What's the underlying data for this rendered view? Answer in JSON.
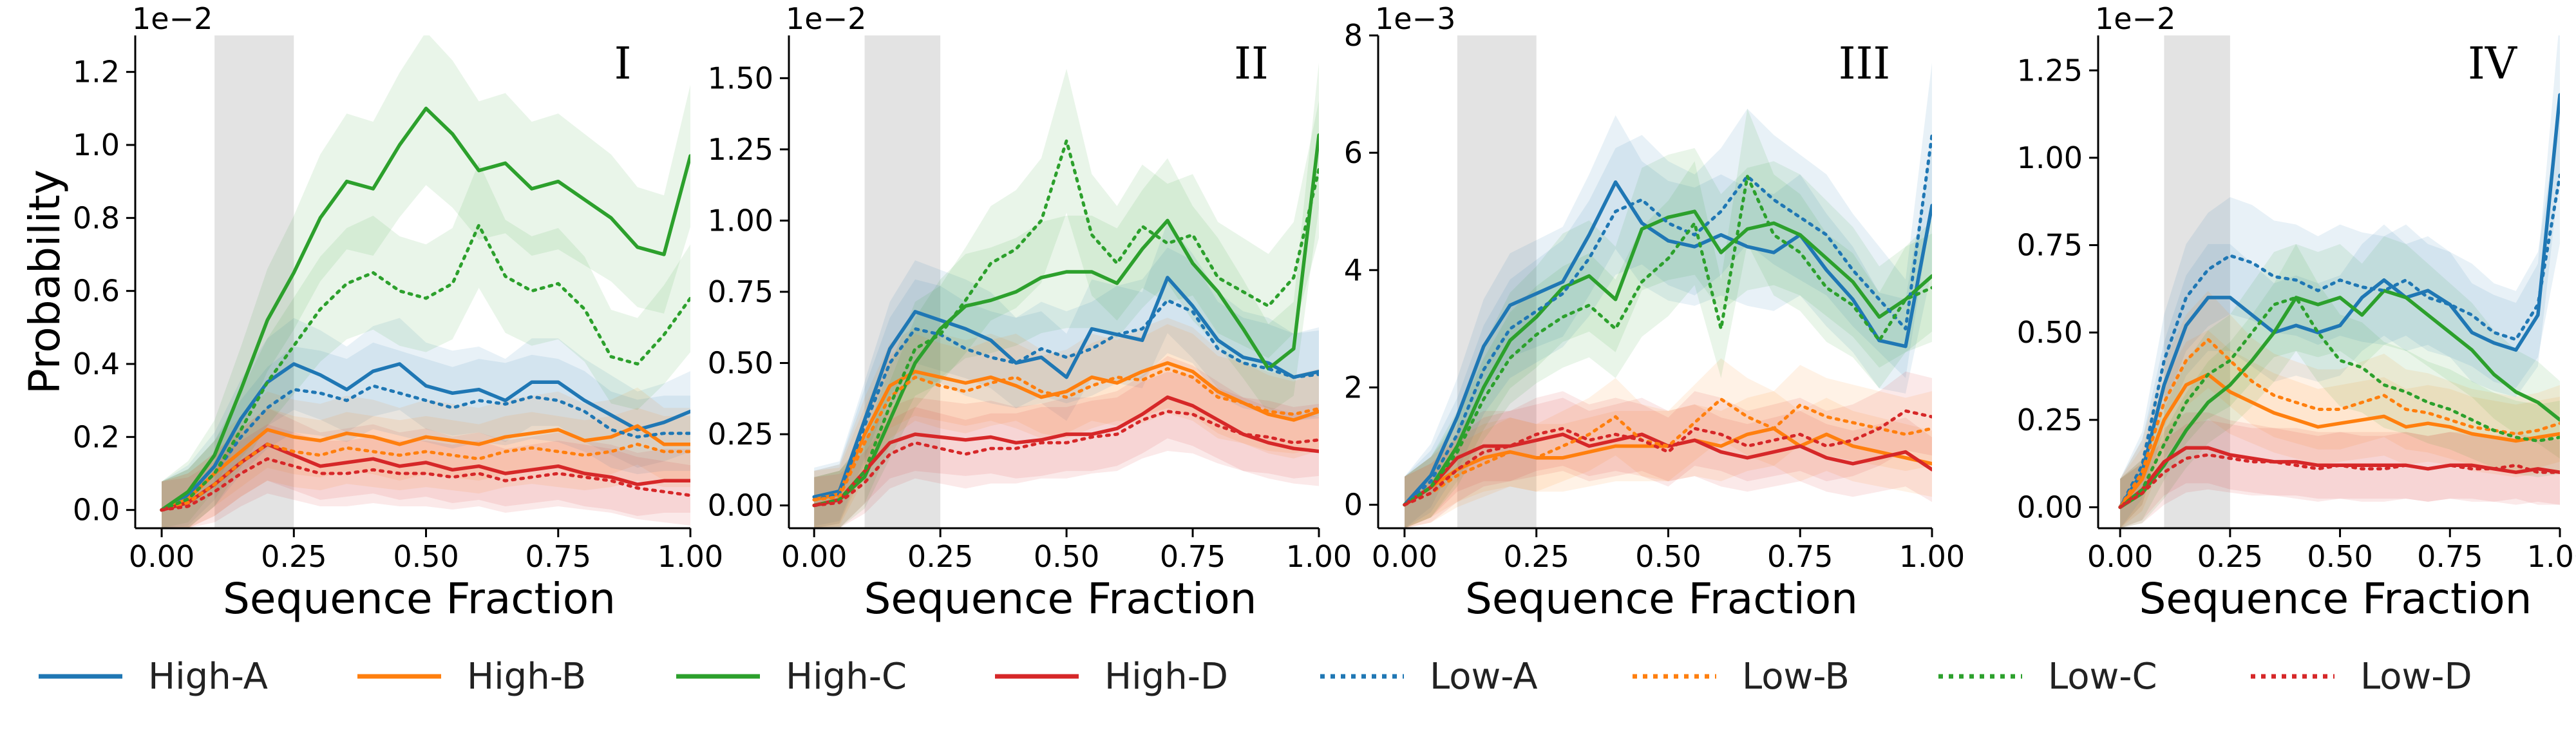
{
  "series_styles": [
    {
      "name": "High-A",
      "color": "#1f77b4",
      "dash": "solid"
    },
    {
      "name": "High-B",
      "color": "#ff7f0e",
      "dash": "solid"
    },
    {
      "name": "High-C",
      "color": "#2ca02c",
      "dash": "solid"
    },
    {
      "name": "High-D",
      "color": "#d62728",
      "dash": "solid"
    },
    {
      "name": "Low-A",
      "color": "#1f77b4",
      "dash": "dotted"
    },
    {
      "name": "Low-B",
      "color": "#ff7f0e",
      "dash": "dotted"
    },
    {
      "name": "Low-C",
      "color": "#2ca02c",
      "dash": "dotted"
    },
    {
      "name": "Low-D",
      "color": "#d62728",
      "dash": "dotted"
    }
  ],
  "chart_data": [
    {
      "type": "line",
      "panel_label": "I",
      "xlabel": "Sequence Fraction",
      "ylabel": "Probability",
      "scale_label": "1e−2",
      "xlim": [
        -0.05,
        1.0
      ],
      "ylim": [
        -0.05,
        1.3
      ],
      "xticks": [
        0.0,
        0.25,
        0.5,
        0.75,
        1.0
      ],
      "xtick_labels": [
        "0.00",
        "0.25",
        "0.50",
        "0.75",
        "1.00"
      ],
      "yticks": [
        0.0,
        0.2,
        0.4,
        0.6,
        0.8,
        1.0,
        1.2
      ],
      "ytick_labels": [
        "0.0",
        "0.2",
        "0.4",
        "0.6",
        "0.8",
        "1.0",
        "1.2"
      ],
      "shaded_region": [
        0.1,
        0.25
      ],
      "x": [
        0.0,
        0.05,
        0.1,
        0.15,
        0.2,
        0.25,
        0.3,
        0.35,
        0.4,
        0.45,
        0.5,
        0.55,
        0.6,
        0.65,
        0.7,
        0.75,
        0.8,
        0.85,
        0.9,
        0.95,
        1.0
      ],
      "series": [
        {
          "name": "High-A",
          "values": [
            0.0,
            0.04,
            0.12,
            0.25,
            0.35,
            0.4,
            0.37,
            0.33,
            0.38,
            0.4,
            0.34,
            0.32,
            0.33,
            0.3,
            0.35,
            0.35,
            0.3,
            0.26,
            0.22,
            0.24,
            0.27
          ]
        },
        {
          "name": "High-B",
          "values": [
            0.0,
            0.03,
            0.1,
            0.16,
            0.22,
            0.2,
            0.19,
            0.21,
            0.2,
            0.18,
            0.2,
            0.19,
            0.18,
            0.2,
            0.21,
            0.22,
            0.19,
            0.2,
            0.23,
            0.18,
            0.18
          ]
        },
        {
          "name": "High-C",
          "values": [
            0.0,
            0.05,
            0.15,
            0.33,
            0.52,
            0.65,
            0.8,
            0.9,
            0.88,
            1.0,
            1.1,
            1.03,
            0.93,
            0.95,
            0.88,
            0.9,
            0.85,
            0.8,
            0.72,
            0.7,
            0.97
          ]
        },
        {
          "name": "High-D",
          "values": [
            0.0,
            0.02,
            0.07,
            0.13,
            0.18,
            0.15,
            0.12,
            0.13,
            0.14,
            0.12,
            0.13,
            0.11,
            0.12,
            0.1,
            0.11,
            0.12,
            0.1,
            0.09,
            0.07,
            0.08,
            0.08
          ]
        },
        {
          "name": "Low-A",
          "values": [
            0.0,
            0.03,
            0.1,
            0.2,
            0.28,
            0.33,
            0.32,
            0.3,
            0.34,
            0.32,
            0.3,
            0.28,
            0.3,
            0.29,
            0.31,
            0.3,
            0.27,
            0.22,
            0.2,
            0.21,
            0.21
          ]
        },
        {
          "name": "Low-B",
          "values": [
            0.0,
            0.02,
            0.07,
            0.13,
            0.18,
            0.16,
            0.15,
            0.17,
            0.16,
            0.15,
            0.16,
            0.15,
            0.14,
            0.16,
            0.17,
            0.16,
            0.15,
            0.16,
            0.18,
            0.16,
            0.16
          ]
        },
        {
          "name": "Low-C",
          "values": [
            0.0,
            0.03,
            0.1,
            0.22,
            0.35,
            0.45,
            0.55,
            0.62,
            0.65,
            0.6,
            0.58,
            0.62,
            0.78,
            0.64,
            0.6,
            0.62,
            0.55,
            0.42,
            0.4,
            0.48,
            0.58
          ]
        },
        {
          "name": "Low-D",
          "values": [
            0.0,
            0.01,
            0.05,
            0.1,
            0.14,
            0.12,
            0.1,
            0.1,
            0.11,
            0.1,
            0.1,
            0.09,
            0.1,
            0.08,
            0.09,
            0.1,
            0.09,
            0.08,
            0.06,
            0.05,
            0.04
          ]
        }
      ]
    },
    {
      "type": "line",
      "panel_label": "II",
      "xlabel": "Sequence Fraction",
      "ylabel": "",
      "scale_label": "1e−2",
      "xlim": [
        -0.05,
        1.0
      ],
      "ylim": [
        -0.08,
        1.65
      ],
      "xticks": [
        0.0,
        0.25,
        0.5,
        0.75,
        1.0
      ],
      "xtick_labels": [
        "0.00",
        "0.25",
        "0.50",
        "0.75",
        "1.00"
      ],
      "yticks": [
        0.0,
        0.25,
        0.5,
        0.75,
        1.0,
        1.25,
        1.5
      ],
      "ytick_labels": [
        "0.00",
        "0.25",
        "0.50",
        "0.75",
        "1.00",
        "1.25",
        "1.50"
      ],
      "shaded_region": [
        0.1,
        0.25
      ],
      "x": [
        0.0,
        0.05,
        0.1,
        0.15,
        0.2,
        0.25,
        0.3,
        0.35,
        0.4,
        0.45,
        0.5,
        0.55,
        0.6,
        0.65,
        0.7,
        0.75,
        0.8,
        0.85,
        0.9,
        0.95,
        1.0
      ],
      "series": [
        {
          "name": "High-A",
          "values": [
            0.03,
            0.05,
            0.3,
            0.55,
            0.68,
            0.65,
            0.62,
            0.58,
            0.5,
            0.52,
            0.45,
            0.62,
            0.6,
            0.58,
            0.8,
            0.7,
            0.58,
            0.52,
            0.5,
            0.45,
            0.47
          ]
        },
        {
          "name": "High-B",
          "values": [
            0.02,
            0.04,
            0.25,
            0.42,
            0.47,
            0.45,
            0.43,
            0.45,
            0.42,
            0.38,
            0.4,
            0.45,
            0.43,
            0.47,
            0.5,
            0.47,
            0.4,
            0.36,
            0.32,
            0.3,
            0.33
          ]
        },
        {
          "name": "High-C",
          "values": [
            0.0,
            0.02,
            0.1,
            0.3,
            0.5,
            0.62,
            0.7,
            0.72,
            0.75,
            0.8,
            0.82,
            0.82,
            0.78,
            0.9,
            1.0,
            0.85,
            0.75,
            0.62,
            0.48,
            0.55,
            1.3
          ]
        },
        {
          "name": "High-D",
          "values": [
            0.0,
            0.02,
            0.12,
            0.22,
            0.25,
            0.24,
            0.23,
            0.24,
            0.22,
            0.23,
            0.25,
            0.25,
            0.27,
            0.32,
            0.38,
            0.35,
            0.3,
            0.25,
            0.22,
            0.2,
            0.19
          ]
        },
        {
          "name": "Low-A",
          "values": [
            0.02,
            0.04,
            0.28,
            0.5,
            0.62,
            0.6,
            0.55,
            0.52,
            0.5,
            0.55,
            0.52,
            0.55,
            0.6,
            0.62,
            0.72,
            0.68,
            0.55,
            0.5,
            0.48,
            0.45,
            0.46
          ]
        },
        {
          "name": "Low-B",
          "values": [
            0.02,
            0.03,
            0.22,
            0.38,
            0.45,
            0.42,
            0.4,
            0.43,
            0.45,
            0.4,
            0.38,
            0.42,
            0.45,
            0.44,
            0.48,
            0.45,
            0.38,
            0.36,
            0.33,
            0.32,
            0.34
          ]
        },
        {
          "name": "Low-C",
          "values": [
            0.0,
            0.02,
            0.12,
            0.35,
            0.55,
            0.6,
            0.72,
            0.85,
            0.9,
            1.0,
            1.28,
            0.95,
            0.85,
            0.98,
            0.92,
            0.95,
            0.8,
            0.75,
            0.7,
            0.8,
            1.18
          ]
        },
        {
          "name": "Low-D",
          "values": [
            0.0,
            0.01,
            0.08,
            0.18,
            0.22,
            0.2,
            0.18,
            0.2,
            0.2,
            0.22,
            0.22,
            0.24,
            0.25,
            0.3,
            0.33,
            0.32,
            0.28,
            0.25,
            0.24,
            0.22,
            0.23
          ]
        }
      ]
    },
    {
      "type": "line",
      "panel_label": "III",
      "xlabel": "Sequence Fraction",
      "ylabel": "",
      "scale_label": "1e−3",
      "xlim": [
        -0.05,
        1.0
      ],
      "ylim": [
        -0.4,
        8.0
      ],
      "xticks": [
        0.0,
        0.25,
        0.5,
        0.75,
        1.0
      ],
      "xtick_labels": [
        "0.00",
        "0.25",
        "0.50",
        "0.75",
        "1.00"
      ],
      "yticks": [
        0,
        2,
        4,
        6,
        8
      ],
      "ytick_labels": [
        "0",
        "2",
        "4",
        "6",
        "8"
      ],
      "shaded_region": [
        0.1,
        0.25
      ],
      "x": [
        0.0,
        0.05,
        0.1,
        0.15,
        0.2,
        0.25,
        0.3,
        0.35,
        0.4,
        0.45,
        0.5,
        0.55,
        0.6,
        0.65,
        0.7,
        0.75,
        0.8,
        0.85,
        0.9,
        0.95,
        1.0
      ],
      "series": [
        {
          "name": "High-A",
          "values": [
            0.0,
            0.5,
            1.5,
            2.7,
            3.4,
            3.6,
            3.8,
            4.6,
            5.5,
            4.8,
            4.5,
            4.4,
            4.6,
            4.4,
            4.3,
            4.6,
            4.0,
            3.5,
            2.8,
            2.7,
            5.1
          ]
        },
        {
          "name": "High-B",
          "values": [
            0.0,
            0.3,
            0.6,
            0.8,
            0.9,
            0.8,
            0.8,
            0.9,
            1.0,
            1.0,
            1.0,
            1.1,
            1.0,
            1.2,
            1.3,
            1.0,
            1.2,
            1.0,
            0.9,
            0.8,
            0.7
          ]
        },
        {
          "name": "High-C",
          "values": [
            0.0,
            0.3,
            1.0,
            2.0,
            2.8,
            3.2,
            3.7,
            3.9,
            3.5,
            4.7,
            4.9,
            5.0,
            4.3,
            4.7,
            4.8,
            4.6,
            4.2,
            3.8,
            3.2,
            3.5,
            3.9
          ]
        },
        {
          "name": "High-D",
          "values": [
            0.0,
            0.3,
            0.8,
            1.0,
            1.0,
            1.1,
            1.2,
            1.0,
            1.1,
            1.2,
            1.0,
            1.1,
            0.9,
            0.8,
            0.9,
            1.0,
            0.8,
            0.7,
            0.8,
            0.9,
            0.6
          ]
        },
        {
          "name": "Low-A",
          "values": [
            0.0,
            0.4,
            1.2,
            2.3,
            3.0,
            3.3,
            3.6,
            4.2,
            5.0,
            5.2,
            4.8,
            4.6,
            5.0,
            5.6,
            5.2,
            4.9,
            4.6,
            4.0,
            3.5,
            3.0,
            6.3
          ]
        },
        {
          "name": "Low-B",
          "values": [
            0.0,
            0.2,
            0.5,
            0.7,
            0.9,
            0.8,
            1.0,
            1.2,
            1.5,
            1.1,
            1.0,
            1.4,
            1.8,
            1.5,
            1.3,
            1.7,
            1.5,
            1.4,
            1.3,
            1.2,
            1.3
          ]
        },
        {
          "name": "Low-C",
          "values": [
            0.0,
            0.3,
            0.9,
            1.8,
            2.5,
            2.9,
            3.2,
            3.4,
            3.0,
            3.8,
            4.2,
            4.8,
            3.0,
            5.6,
            4.6,
            4.3,
            3.7,
            3.4,
            2.8,
            3.5,
            3.7
          ]
        },
        {
          "name": "Low-D",
          "values": [
            0.0,
            0.2,
            0.6,
            0.9,
            1.0,
            1.2,
            1.3,
            1.1,
            1.2,
            1.1,
            0.9,
            1.3,
            1.2,
            1.0,
            1.1,
            1.2,
            1.0,
            1.1,
            1.3,
            1.6,
            1.5
          ]
        }
      ]
    },
    {
      "type": "line",
      "panel_label": "IV",
      "xlabel": "Sequence Fraction",
      "ylabel": "",
      "scale_label": "1e−2",
      "xlim": [
        -0.05,
        1.0
      ],
      "ylim": [
        -0.06,
        1.35
      ],
      "xticks": [
        0.0,
        0.25,
        0.5,
        0.75,
        1.0
      ],
      "xtick_labels": [
        "0.00",
        "0.25",
        "0.50",
        "0.75",
        "1.00"
      ],
      "yticks": [
        0.0,
        0.25,
        0.5,
        0.75,
        1.0,
        1.25
      ],
      "ytick_labels": [
        "0.00",
        "0.25",
        "0.50",
        "0.75",
        "1.00",
        "1.25"
      ],
      "shaded_region": [
        0.1,
        0.25
      ],
      "x": [
        0.0,
        0.05,
        0.1,
        0.15,
        0.2,
        0.25,
        0.3,
        0.35,
        0.4,
        0.45,
        0.5,
        0.55,
        0.6,
        0.65,
        0.7,
        0.75,
        0.8,
        0.85,
        0.9,
        0.95,
        1.0
      ],
      "series": [
        {
          "name": "High-A",
          "values": [
            0.0,
            0.1,
            0.35,
            0.52,
            0.6,
            0.6,
            0.55,
            0.5,
            0.52,
            0.5,
            0.52,
            0.6,
            0.65,
            0.6,
            0.62,
            0.58,
            0.5,
            0.47,
            0.45,
            0.55,
            1.18
          ]
        },
        {
          "name": "High-B",
          "values": [
            0.0,
            0.08,
            0.25,
            0.35,
            0.38,
            0.33,
            0.3,
            0.27,
            0.25,
            0.23,
            0.24,
            0.25,
            0.26,
            0.23,
            0.24,
            0.23,
            0.21,
            0.2,
            0.19,
            0.2,
            0.21
          ]
        },
        {
          "name": "High-C",
          "values": [
            0.0,
            0.04,
            0.12,
            0.22,
            0.3,
            0.35,
            0.42,
            0.5,
            0.6,
            0.58,
            0.6,
            0.55,
            0.62,
            0.6,
            0.55,
            0.5,
            0.45,
            0.38,
            0.33,
            0.3,
            0.25
          ]
        },
        {
          "name": "High-D",
          "values": [
            0.0,
            0.05,
            0.13,
            0.17,
            0.17,
            0.15,
            0.14,
            0.13,
            0.13,
            0.12,
            0.12,
            0.12,
            0.12,
            0.12,
            0.11,
            0.12,
            0.12,
            0.11,
            0.1,
            0.11,
            0.1
          ]
        },
        {
          "name": "Low-A",
          "values": [
            0.0,
            0.12,
            0.42,
            0.6,
            0.68,
            0.72,
            0.7,
            0.66,
            0.65,
            0.62,
            0.65,
            0.63,
            0.62,
            0.65,
            0.6,
            0.58,
            0.55,
            0.5,
            0.48,
            0.58,
            0.95
          ]
        },
        {
          "name": "Low-B",
          "values": [
            0.0,
            0.1,
            0.3,
            0.42,
            0.48,
            0.42,
            0.36,
            0.32,
            0.3,
            0.28,
            0.28,
            0.3,
            0.32,
            0.28,
            0.27,
            0.25,
            0.23,
            0.22,
            0.21,
            0.22,
            0.24
          ]
        },
        {
          "name": "Low-C",
          "values": [
            0.0,
            0.05,
            0.18,
            0.3,
            0.38,
            0.42,
            0.5,
            0.58,
            0.6,
            0.5,
            0.42,
            0.4,
            0.35,
            0.33,
            0.3,
            0.28,
            0.25,
            0.22,
            0.2,
            0.19,
            0.2
          ]
        },
        {
          "name": "Low-D",
          "values": [
            0.0,
            0.04,
            0.1,
            0.14,
            0.15,
            0.14,
            0.13,
            0.13,
            0.12,
            0.11,
            0.12,
            0.11,
            0.11,
            0.12,
            0.11,
            0.12,
            0.11,
            0.11,
            0.12,
            0.1,
            0.1
          ]
        }
      ]
    }
  ]
}
